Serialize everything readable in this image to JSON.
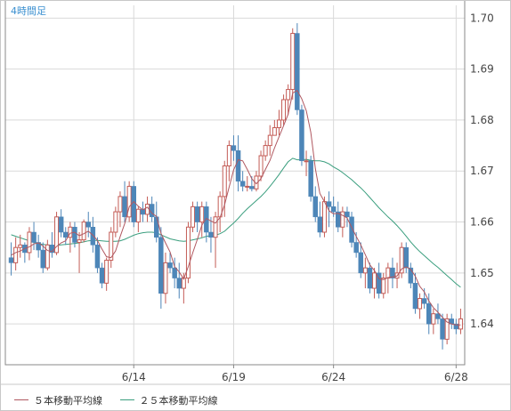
{
  "timeframe_label": "4時間足",
  "colors": {
    "up_candle": "#c45c56",
    "down_candle": "#4d86b8",
    "ma5": "#b05860",
    "ma25": "#3a9e7e",
    "grid": "#d9d9d9",
    "axis": "#888888",
    "label": "#444444",
    "timeframe": "#3a8fd0"
  },
  "chart_data": {
    "type": "candlestick",
    "title": "",
    "xlabel": "",
    "ylabel": "",
    "ylim": [
      1.632,
      1.7025
    ],
    "y_ticks": [
      "1.70",
      "1.69",
      "1.68",
      "1.67",
      "1.66",
      "1.65",
      "1.64"
    ],
    "x_tick_labels": [
      {
        "label": "6/14",
        "index": 27
      },
      {
        "label": "6/19",
        "index": 49
      },
      {
        "label": "6/24",
        "index": 71
      },
      {
        "label": "6/28",
        "index": 98
      }
    ],
    "ohlc": [
      [
        1.653,
        1.656,
        1.6495,
        1.652
      ],
      [
        1.652,
        1.657,
        1.6505,
        1.655
      ],
      [
        1.655,
        1.6575,
        1.653,
        1.6555
      ],
      [
        1.6555,
        1.656,
        1.652,
        1.654
      ],
      [
        1.654,
        1.659,
        1.6525,
        1.658
      ],
      [
        1.658,
        1.66,
        1.6545,
        1.656
      ],
      [
        1.656,
        1.6575,
        1.653,
        1.6545
      ],
      [
        1.6545,
        1.656,
        1.65,
        1.651
      ],
      [
        1.651,
        1.6565,
        1.6505,
        1.6555
      ],
      [
        1.6555,
        1.658,
        1.653,
        1.654
      ],
      [
        1.654,
        1.662,
        1.6535,
        1.661
      ],
      [
        1.661,
        1.6625,
        1.657,
        1.658
      ],
      [
        1.658,
        1.659,
        1.6555,
        1.657
      ],
      [
        1.657,
        1.66,
        1.654,
        1.659
      ],
      [
        1.659,
        1.66,
        1.655,
        1.656
      ],
      [
        1.656,
        1.658,
        1.65,
        1.6565
      ],
      [
        1.6565,
        1.6605,
        1.656,
        1.66
      ],
      [
        1.66,
        1.662,
        1.657,
        1.659
      ],
      [
        1.659,
        1.661,
        1.654,
        1.6555
      ],
      [
        1.6555,
        1.657,
        1.65,
        1.651
      ],
      [
        1.651,
        1.652,
        1.647,
        1.648
      ],
      [
        1.648,
        1.653,
        1.6465,
        1.6525
      ],
      [
        1.6525,
        1.659,
        1.651,
        1.658
      ],
      [
        1.658,
        1.663,
        1.657,
        1.662
      ],
      [
        1.662,
        1.666,
        1.659,
        1.665
      ],
      [
        1.665,
        1.668,
        1.66,
        1.661
      ],
      [
        1.661,
        1.668,
        1.66,
        1.667
      ],
      [
        1.667,
        1.668,
        1.659,
        1.66
      ],
      [
        1.66,
        1.663,
        1.658,
        1.6625
      ],
      [
        1.6625,
        1.664,
        1.66,
        1.6615
      ],
      [
        1.6615,
        1.665,
        1.66,
        1.6635
      ],
      [
        1.6635,
        1.665,
        1.66,
        1.661
      ],
      [
        1.661,
        1.664,
        1.656,
        1.657
      ],
      [
        1.657,
        1.659,
        1.643,
        1.646
      ],
      [
        1.646,
        1.654,
        1.644,
        1.652
      ],
      [
        1.652,
        1.654,
        1.65,
        1.651
      ],
      [
        1.651,
        1.653,
        1.647,
        1.649
      ],
      [
        1.649,
        1.652,
        1.645,
        1.647
      ],
      [
        1.647,
        1.65,
        1.644,
        1.649
      ],
      [
        1.649,
        1.66,
        1.648,
        1.659
      ],
      [
        1.659,
        1.664,
        1.658,
        1.663
      ],
      [
        1.663,
        1.664,
        1.658,
        1.66
      ],
      [
        1.66,
        1.664,
        1.657,
        1.663
      ],
      [
        1.663,
        1.664,
        1.656,
        1.658
      ],
      [
        1.658,
        1.661,
        1.654,
        1.657
      ],
      [
        1.657,
        1.662,
        1.651,
        1.661
      ],
      [
        1.661,
        1.666,
        1.658,
        1.665
      ],
      [
        1.665,
        1.672,
        1.661,
        1.671
      ],
      [
        1.671,
        1.676,
        1.668,
        1.675
      ],
      [
        1.675,
        1.677,
        1.672,
        1.674
      ],
      [
        1.674,
        1.677,
        1.666,
        1.668
      ],
      [
        1.668,
        1.67,
        1.666,
        1.667
      ],
      [
        1.667,
        1.669,
        1.666,
        1.667
      ],
      [
        1.667,
        1.669,
        1.666,
        1.6665
      ],
      [
        1.6665,
        1.67,
        1.666,
        1.669
      ],
      [
        1.669,
        1.674,
        1.668,
        1.673
      ],
      [
        1.673,
        1.676,
        1.672,
        1.675
      ],
      [
        1.675,
        1.679,
        1.673,
        1.677
      ],
      [
        1.677,
        1.68,
        1.677,
        1.6785
      ],
      [
        1.6785,
        1.682,
        1.677,
        1.68
      ],
      [
        1.68,
        1.685,
        1.679,
        1.684
      ],
      [
        1.684,
        1.687,
        1.681,
        1.686
      ],
      [
        1.686,
        1.698,
        1.684,
        1.697
      ],
      [
        1.697,
        1.699,
        1.681,
        1.682
      ],
      [
        1.682,
        1.683,
        1.671,
        1.672
      ],
      [
        1.672,
        1.674,
        1.669,
        1.672
      ],
      [
        1.672,
        1.673,
        1.664,
        1.665
      ],
      [
        1.665,
        1.667,
        1.66,
        1.661
      ],
      [
        1.661,
        1.664,
        1.657,
        1.658
      ],
      [
        1.658,
        1.665,
        1.657,
        1.664
      ],
      [
        1.664,
        1.666,
        1.659,
        1.663
      ],
      [
        1.663,
        1.665,
        1.661,
        1.662
      ],
      [
        1.662,
        1.664,
        1.658,
        1.659
      ],
      [
        1.659,
        1.663,
        1.657,
        1.662
      ],
      [
        1.662,
        1.663,
        1.659,
        1.661
      ],
      [
        1.661,
        1.662,
        1.655,
        1.656
      ],
      [
        1.656,
        1.658,
        1.653,
        1.654
      ],
      [
        1.654,
        1.656,
        1.649,
        1.65
      ],
      [
        1.65,
        1.653,
        1.647,
        1.651
      ],
      [
        1.651,
        1.652,
        1.646,
        1.647
      ],
      [
        1.647,
        1.651,
        1.645,
        1.65
      ],
      [
        1.65,
        1.652,
        1.645,
        1.646
      ],
      [
        1.646,
        1.65,
        1.645,
        1.649
      ],
      [
        1.649,
        1.652,
        1.646,
        1.651
      ],
      [
        1.651,
        1.653,
        1.647,
        1.649
      ],
      [
        1.649,
        1.652,
        1.647,
        1.65
      ],
      [
        1.65,
        1.656,
        1.649,
        1.655
      ],
      [
        1.655,
        1.656,
        1.65,
        1.651
      ],
      [
        1.651,
        1.652,
        1.647,
        1.648
      ],
      [
        1.648,
        1.65,
        1.642,
        1.643
      ],
      [
        1.643,
        1.646,
        1.641,
        1.645
      ],
      [
        1.645,
        1.647,
        1.643,
        1.644
      ],
      [
        1.644,
        1.646,
        1.638,
        1.64
      ],
      [
        1.64,
        1.643,
        1.638,
        1.642
      ],
      [
        1.642,
        1.644,
        1.64,
        1.641
      ],
      [
        1.641,
        1.642,
        1.635,
        1.637
      ],
      [
        1.637,
        1.642,
        1.636,
        1.641
      ],
      [
        1.641,
        1.642,
        1.639,
        1.64
      ],
      [
        1.64,
        1.641,
        1.638,
        1.639
      ],
      [
        1.639,
        1.643,
        1.638,
        1.641
      ]
    ],
    "series": [
      {
        "name": "５本移動平均線",
        "values": [
          1.6535,
          1.654,
          1.6543,
          1.6548,
          1.6551,
          1.6557,
          1.6559,
          1.6553,
          1.6544,
          1.6542,
          1.6552,
          1.6559,
          1.6563,
          1.6578,
          1.658,
          1.6573,
          1.6577,
          1.6582,
          1.6574,
          1.6564,
          1.6547,
          1.6532,
          1.653,
          1.6543,
          1.6571,
          1.6597,
          1.663,
          1.664,
          1.6631,
          1.6624,
          1.6629,
          1.6617,
          1.6611,
          1.6578,
          1.6559,
          1.6541,
          1.6512,
          1.6502,
          1.6488,
          1.6512,
          1.654,
          1.6566,
          1.6594,
          1.6607,
          1.6602,
          1.6598,
          1.6609,
          1.6634,
          1.6668,
          1.6702,
          1.6722,
          1.672,
          1.6703,
          1.6685,
          1.6675,
          1.6685,
          1.6703,
          1.6721,
          1.6745,
          1.6767,
          1.6789,
          1.6811,
          1.6853,
          1.6858,
          1.6842,
          1.6818,
          1.6776,
          1.6704,
          1.6656,
          1.664,
          1.6622,
          1.6616,
          1.6617,
          1.6613,
          1.6608,
          1.6589,
          1.6572,
          1.6555,
          1.6536,
          1.6516,
          1.6505,
          1.6489,
          1.6487,
          1.6491,
          1.6492,
          1.6494,
          1.6508,
          1.6512,
          1.6507,
          1.6494,
          1.6474,
          1.6463,
          1.6445,
          1.6432,
          1.6423,
          1.6413,
          1.6404,
          1.64,
          1.6398,
          1.6398
        ]
      },
      {
        "name": "２５本移動平均線",
        "values": [
          1.6575,
          1.6572,
          1.6569,
          1.6566,
          1.6563,
          1.656,
          1.6558,
          1.6556,
          1.6555,
          1.6554,
          1.6554,
          1.6555,
          1.6556,
          1.6557,
          1.6558,
          1.6559,
          1.6561,
          1.6563,
          1.6564,
          1.6564,
          1.6563,
          1.6562,
          1.6562,
          1.6562,
          1.6563,
          1.6566,
          1.657,
          1.6574,
          1.6577,
          1.6579,
          1.658,
          1.658,
          1.6579,
          1.6575,
          1.6571,
          1.6567,
          1.6565,
          1.6563,
          1.6562,
          1.6563,
          1.6565,
          1.6567,
          1.6569,
          1.6572,
          1.6573,
          1.6574,
          1.6577,
          1.6582,
          1.659,
          1.6598,
          1.6607,
          1.6617,
          1.6626,
          1.6634,
          1.6642,
          1.665,
          1.6659,
          1.667,
          1.6681,
          1.6693,
          1.6706,
          1.6718,
          1.6725,
          1.6722,
          1.6722,
          1.6723,
          1.6721,
          1.672,
          1.672,
          1.6718,
          1.6714,
          1.6708,
          1.6703,
          1.6697,
          1.669,
          1.6683,
          1.6675,
          1.6667,
          1.6658,
          1.6648,
          1.6638,
          1.6628,
          1.6619,
          1.661,
          1.6602,
          1.6593,
          1.6583,
          1.6572,
          1.6561,
          1.6551,
          1.6542,
          1.6534,
          1.6526,
          1.6518,
          1.6511,
          1.6503,
          1.6495,
          1.6487,
          1.6479,
          1.6472
        ]
      }
    ],
    "legend": [
      "５本移動平均線",
      "２５本移動平均線"
    ]
  }
}
